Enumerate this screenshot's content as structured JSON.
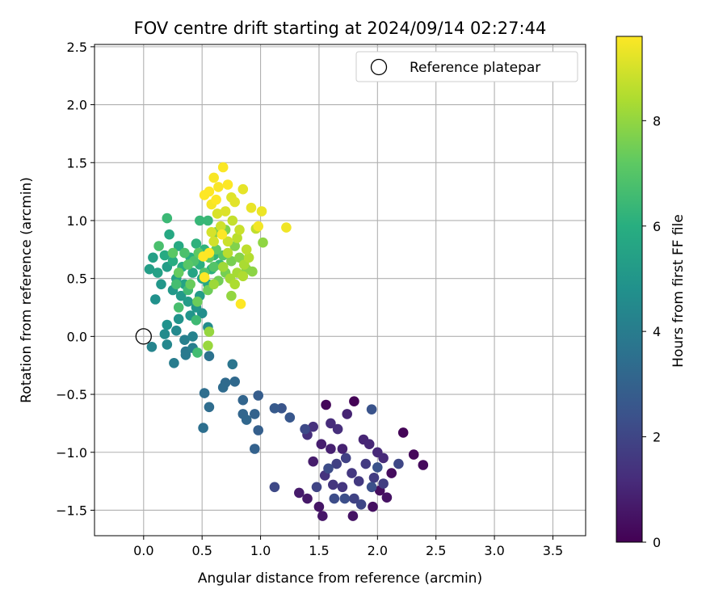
{
  "chart_data": {
    "type": "scatter",
    "title": "FOV centre drift starting at 2024/09/14 02:27:44",
    "xlabel": "Angular distance from reference (arcmin)",
    "ylabel": "Rotation from reference (arcmin)",
    "xlim": [
      -0.42,
      3.78
    ],
    "ylim": [
      -1.72,
      2.52
    ],
    "xticks": [
      "0.0",
      "0.5",
      "1.0",
      "1.5",
      "2.0",
      "2.5",
      "3.0",
      "3.5"
    ],
    "yticks": [
      "−1.5",
      "−1.0",
      "−0.5",
      "0.0",
      "0.5",
      "1.0",
      "1.5",
      "2.0",
      "2.5"
    ],
    "grid": true,
    "legend": {
      "position": "top-right",
      "entries": [
        "Reference platepar"
      ]
    },
    "reference_point": {
      "x": 0.0,
      "y": 0.0
    },
    "colorbar": {
      "label": "Hours from first FF file",
      "range": [
        0,
        9.6
      ],
      "ticks": [
        "0",
        "2",
        "4",
        "6",
        "8"
      ],
      "colormap": "viridis"
    },
    "marker_color_channel": "hours from first FF file",
    "points": [
      [
        1.8,
        -0.56,
        0.05
      ],
      [
        2.22,
        -0.83,
        0.1
      ],
      [
        1.56,
        -0.59,
        0.15
      ],
      [
        2.31,
        -1.02,
        0.2
      ],
      [
        2.39,
        -1.11,
        0.25
      ],
      [
        2.12,
        -1.18,
        0.3
      ],
      [
        2.02,
        -1.33,
        0.35
      ],
      [
        1.96,
        -1.47,
        0.4
      ],
      [
        2.08,
        -1.39,
        0.45
      ],
      [
        1.79,
        -1.55,
        0.5
      ],
      [
        1.5,
        -1.47,
        0.55
      ],
      [
        1.53,
        -1.55,
        0.6
      ],
      [
        1.4,
        -1.4,
        0.65
      ],
      [
        1.33,
        -1.35,
        0.7
      ],
      [
        1.45,
        -1.08,
        0.75
      ],
      [
        1.52,
        -0.93,
        0.8
      ],
      [
        1.6,
        -0.97,
        0.85
      ],
      [
        1.7,
        -0.97,
        0.9
      ],
      [
        1.74,
        -0.67,
        0.95
      ],
      [
        1.88,
        -0.89,
        1.0
      ],
      [
        1.93,
        -0.93,
        1.05
      ],
      [
        2.0,
        -1.0,
        1.1
      ],
      [
        2.05,
        -1.05,
        1.15
      ],
      [
        1.6,
        -0.75,
        1.2
      ],
      [
        1.66,
        -0.8,
        1.25
      ],
      [
        1.4,
        -0.85,
        1.3
      ],
      [
        1.45,
        -0.78,
        1.35
      ],
      [
        1.55,
        -1.2,
        1.4
      ],
      [
        1.62,
        -1.28,
        1.45
      ],
      [
        1.7,
        -1.3,
        1.5
      ],
      [
        1.78,
        -1.18,
        1.55
      ],
      [
        1.84,
        -1.25,
        1.6
      ],
      [
        1.9,
        -1.1,
        1.65
      ],
      [
        1.97,
        -1.22,
        1.7
      ],
      [
        2.05,
        -1.27,
        1.75
      ],
      [
        1.65,
        -1.1,
        1.8
      ],
      [
        1.73,
        -1.05,
        1.85
      ],
      [
        1.8,
        -1.4,
        1.9
      ],
      [
        1.48,
        -1.3,
        1.95
      ],
      [
        1.86,
        -1.45,
        2.0
      ],
      [
        2.18,
        -1.1,
        2.05
      ],
      [
        1.12,
        -1.3,
        2.1
      ],
      [
        1.38,
        -0.8,
        2.15
      ],
      [
        1.58,
        -1.14,
        2.2
      ],
      [
        1.63,
        -1.4,
        2.25
      ],
      [
        1.72,
        -1.4,
        2.3
      ],
      [
        1.95,
        -1.3,
        2.35
      ],
      [
        2.0,
        -1.13,
        2.4
      ],
      [
        1.95,
        -0.63,
        2.45
      ],
      [
        1.18,
        -0.62,
        2.5
      ],
      [
        1.25,
        -0.7,
        2.6
      ],
      [
        1.12,
        -0.62,
        2.7
      ],
      [
        0.98,
        -0.51,
        2.8
      ],
      [
        0.98,
        -0.81,
        2.9
      ],
      [
        0.95,
        -0.97,
        3.0
      ],
      [
        0.95,
        -0.67,
        3.05
      ],
      [
        0.85,
        -0.55,
        3.1
      ],
      [
        0.85,
        -0.67,
        3.15
      ],
      [
        0.88,
        -0.72,
        3.2
      ],
      [
        0.78,
        -0.39,
        3.25
      ],
      [
        0.7,
        -0.4,
        3.3
      ],
      [
        0.68,
        -0.44,
        3.35
      ],
      [
        0.56,
        -0.61,
        3.4
      ],
      [
        0.52,
        -0.49,
        3.45
      ],
      [
        0.51,
        -0.79,
        3.5
      ],
      [
        0.56,
        -0.17,
        3.6
      ],
      [
        0.76,
        -0.24,
        3.7
      ],
      [
        0.36,
        -0.13,
        3.8
      ],
      [
        0.36,
        -0.16,
        3.9
      ],
      [
        0.26,
        -0.23,
        4.0
      ],
      [
        0.42,
        -0.1,
        4.05
      ],
      [
        0.35,
        -0.03,
        4.1
      ],
      [
        0.42,
        0.0,
        4.2
      ],
      [
        0.07,
        -0.09,
        4.3
      ],
      [
        0.2,
        -0.07,
        4.4
      ],
      [
        0.28,
        0.05,
        4.5
      ],
      [
        0.18,
        0.02,
        4.55
      ],
      [
        0.55,
        0.08,
        4.6
      ],
      [
        0.5,
        0.2,
        4.7
      ],
      [
        0.1,
        0.32,
        4.8
      ],
      [
        0.2,
        0.1,
        4.85
      ],
      [
        0.3,
        0.15,
        4.9
      ],
      [
        0.4,
        0.18,
        4.95
      ],
      [
        0.45,
        0.25,
        5.0
      ],
      [
        0.15,
        0.45,
        5.05
      ],
      [
        0.25,
        0.4,
        5.1
      ],
      [
        0.32,
        0.35,
        5.15
      ],
      [
        0.38,
        0.3,
        5.2
      ],
      [
        0.48,
        0.35,
        5.25
      ],
      [
        0.2,
        0.6,
        5.3
      ],
      [
        0.05,
        0.58,
        5.35
      ],
      [
        0.08,
        0.68,
        5.4
      ],
      [
        0.12,
        0.55,
        5.45
      ],
      [
        0.28,
        0.5,
        5.5
      ],
      [
        0.35,
        0.45,
        5.55
      ],
      [
        0.42,
        0.55,
        5.6
      ],
      [
        0.5,
        0.5,
        5.65
      ],
      [
        0.55,
        0.45,
        5.7
      ],
      [
        0.22,
        0.88,
        5.75
      ],
      [
        0.3,
        0.78,
        5.8
      ],
      [
        0.18,
        0.7,
        5.85
      ],
      [
        0.25,
        0.65,
        5.9
      ],
      [
        0.33,
        0.6,
        5.95
      ],
      [
        0.4,
        0.68,
        6.0
      ],
      [
        0.48,
        0.62,
        6.05
      ],
      [
        0.58,
        0.58,
        6.1
      ],
      [
        0.45,
        0.8,
        6.15
      ],
      [
        0.52,
        0.75,
        6.2
      ],
      [
        0.6,
        0.7,
        6.25
      ],
      [
        0.65,
        0.62,
        6.3
      ],
      [
        0.48,
        1.0,
        6.35
      ],
      [
        0.55,
        1.0,
        6.4
      ],
      [
        0.2,
        1.02,
        6.45
      ],
      [
        0.45,
        0.14,
        6.5
      ],
      [
        0.38,
        0.4,
        6.55
      ],
      [
        0.46,
        -0.14,
        6.6
      ],
      [
        0.28,
        0.45,
        6.65
      ],
      [
        0.3,
        0.25,
        6.7
      ],
      [
        0.13,
        0.78,
        6.75
      ],
      [
        0.35,
        0.72,
        6.8
      ],
      [
        0.43,
        0.65,
        6.85
      ],
      [
        0.52,
        0.55,
        6.9
      ],
      [
        0.6,
        0.6,
        6.95
      ],
      [
        0.68,
        0.7,
        7.0
      ],
      [
        0.38,
        0.62,
        7.05
      ],
      [
        0.25,
        0.72,
        7.1
      ],
      [
        0.47,
        0.72,
        7.15
      ],
      [
        0.56,
        0.68,
        7.2
      ],
      [
        0.62,
        0.75,
        7.25
      ],
      [
        0.3,
        0.55,
        7.3
      ],
      [
        0.4,
        0.45,
        7.35
      ],
      [
        0.46,
        0.3,
        7.4
      ],
      [
        0.55,
        0.4,
        7.45
      ],
      [
        0.64,
        0.48,
        7.5
      ],
      [
        0.7,
        0.55,
        7.55
      ],
      [
        0.75,
        0.65,
        7.6
      ],
      [
        0.62,
        0.9,
        7.65
      ],
      [
        0.7,
        0.92,
        7.7
      ],
      [
        0.78,
        0.78,
        7.75
      ],
      [
        0.82,
        0.68,
        7.8
      ],
      [
        0.88,
        0.58,
        7.85
      ],
      [
        0.93,
        0.56,
        7.9
      ],
      [
        1.02,
        0.81,
        7.95
      ],
      [
        0.75,
        0.35,
        8.0
      ],
      [
        0.56,
        0.04,
        8.05
      ],
      [
        0.55,
        -0.08,
        8.1
      ],
      [
        0.6,
        0.45,
        8.15
      ],
      [
        0.68,
        0.6,
        8.2
      ],
      [
        0.74,
        0.5,
        8.25
      ],
      [
        0.8,
        0.55,
        8.3
      ],
      [
        0.86,
        0.62,
        8.35
      ],
      [
        0.78,
        0.45,
        8.4
      ],
      [
        0.85,
        0.52,
        8.45
      ],
      [
        0.9,
        0.68,
        8.5
      ],
      [
        0.72,
        0.72,
        8.55
      ],
      [
        0.8,
        0.85,
        8.6
      ],
      [
        0.88,
        0.75,
        8.65
      ],
      [
        0.96,
        0.93,
        8.7
      ],
      [
        0.76,
        1.0,
        8.75
      ],
      [
        0.82,
        0.92,
        8.8
      ],
      [
        0.72,
        0.82,
        8.85
      ],
      [
        0.66,
        0.95,
        8.9
      ],
      [
        0.6,
        0.82,
        8.95
      ],
      [
        0.58,
        0.9,
        9.0
      ],
      [
        0.63,
        1.06,
        9.05
      ],
      [
        0.7,
        1.08,
        9.1
      ],
      [
        0.75,
        1.2,
        9.15
      ],
      [
        0.78,
        1.16,
        9.2
      ],
      [
        0.85,
        1.27,
        9.25
      ],
      [
        0.92,
        1.11,
        9.3
      ],
      [
        1.01,
        1.08,
        9.35
      ],
      [
        1.22,
        0.94,
        9.4
      ],
      [
        0.98,
        0.95,
        9.45
      ],
      [
        0.58,
        1.14,
        9.5
      ],
      [
        0.6,
        1.37,
        9.52
      ],
      [
        0.64,
        1.29,
        9.54
      ],
      [
        0.68,
        1.46,
        9.56
      ],
      [
        0.72,
        1.31,
        9.58
      ],
      [
        0.52,
        1.22,
        9.6
      ],
      [
        0.56,
        1.25,
        9.6
      ],
      [
        0.83,
        0.28,
        9.6
      ],
      [
        0.51,
        0.69,
        9.6
      ],
      [
        0.52,
        0.51,
        9.6
      ],
      [
        0.56,
        0.72,
        9.6
      ],
      [
        0.67,
        0.88,
        9.6
      ],
      [
        0.62,
        1.18,
        9.6
      ]
    ]
  }
}
